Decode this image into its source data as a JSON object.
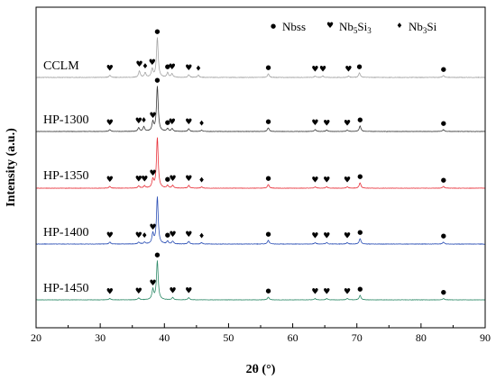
{
  "chart_data": {
    "type": "line",
    "xlabel": "2θ (°)",
    "ylabel": "Intensity (a.u.)",
    "xlim": [
      20,
      90
    ],
    "x_ticks": [
      20,
      30,
      40,
      50,
      60,
      70,
      80,
      90
    ],
    "grid": false,
    "legend_position": "top-right",
    "legend": [
      {
        "symbol": "●",
        "label": "Nbss",
        "label_main": "Nbss",
        "phase": "nbss"
      },
      {
        "symbol": "♥",
        "label": "Nb5Si3",
        "label_main": "Nb",
        "sub1": "5",
        "mid": "Si",
        "sub2": "3",
        "phase": "nb5si3"
      },
      {
        "symbol": "♦",
        "label": "Nb3Si",
        "label_main": "Nb",
        "sub1": "3",
        "mid": "Si",
        "sub2": "",
        "phase": "nb3si"
      }
    ],
    "series": [
      {
        "name": "CCLM",
        "color": "#a6a6a6",
        "baseline": 0.0,
        "noise": 0.6,
        "peaks": [
          [
            31.5,
            2.5
          ],
          [
            36.1,
            7
          ],
          [
            37.0,
            5
          ],
          [
            38.1,
            9
          ],
          [
            38.9,
            44
          ],
          [
            40.5,
            5
          ],
          [
            41.2,
            4
          ],
          [
            43.8,
            3
          ],
          [
            45.3,
            2.5
          ],
          [
            56.2,
            4
          ],
          [
            63.5,
            1.5
          ],
          [
            64.7,
            1.5
          ],
          [
            68.7,
            1.5
          ],
          [
            70.4,
            5
          ],
          [
            83.5,
            2
          ]
        ],
        "markers": [
          {
            "x": 31.5,
            "phase": "nb5si3"
          },
          {
            "x": 36.1,
            "phase": "nb5si3"
          },
          {
            "x": 37.0,
            "phase": "nb3si"
          },
          {
            "x": 38.1,
            "phase": "nb5si3"
          },
          {
            "x": 38.9,
            "phase": "nbss"
          },
          {
            "x": 40.5,
            "phase": "nbss"
          },
          {
            "x": 41.2,
            "phase": "nb5si3"
          },
          {
            "x": 43.8,
            "phase": "nb5si3"
          },
          {
            "x": 45.3,
            "phase": "nb3si"
          },
          {
            "x": 56.2,
            "phase": "nbss"
          },
          {
            "x": 63.5,
            "phase": "nb5si3"
          },
          {
            "x": 64.7,
            "phase": "nb5si3"
          },
          {
            "x": 68.7,
            "phase": "nb5si3"
          },
          {
            "x": 70.4,
            "phase": "nbss"
          },
          {
            "x": 83.5,
            "phase": "nbss"
          }
        ]
      },
      {
        "name": "HP-1300",
        "color": "#3a3a3a",
        "baseline": 0.0,
        "noise": 0.4,
        "peaks": [
          [
            31.5,
            2
          ],
          [
            36.0,
            4
          ],
          [
            36.8,
            5
          ],
          [
            38.2,
            10
          ],
          [
            38.9,
            50
          ],
          [
            40.5,
            3
          ],
          [
            41.2,
            3
          ],
          [
            43.8,
            3
          ],
          [
            45.8,
            1.5
          ],
          [
            56.2,
            4
          ],
          [
            63.5,
            2
          ],
          [
            65.3,
            1.5
          ],
          [
            68.5,
            1.5
          ],
          [
            70.5,
            6
          ],
          [
            83.5,
            2
          ]
        ],
        "markers": [
          {
            "x": 31.5,
            "phase": "nb5si3"
          },
          {
            "x": 36.0,
            "phase": "nb5si3"
          },
          {
            "x": 36.8,
            "phase": "nb3si"
          },
          {
            "x": 38.2,
            "phase": "nb5si3"
          },
          {
            "x": 38.9,
            "phase": "nbss"
          },
          {
            "x": 40.5,
            "phase": "nbss"
          },
          {
            "x": 41.2,
            "phase": "nb5si3"
          },
          {
            "x": 43.8,
            "phase": "nb5si3"
          },
          {
            "x": 45.8,
            "phase": "nb3si"
          },
          {
            "x": 56.2,
            "phase": "nbss"
          },
          {
            "x": 63.5,
            "phase": "nb5si3"
          },
          {
            "x": 65.3,
            "phase": "nb5si3"
          },
          {
            "x": 68.5,
            "phase": "nb5si3"
          },
          {
            "x": 70.5,
            "phase": "nbss"
          },
          {
            "x": 83.5,
            "phase": "nbss"
          }
        ]
      },
      {
        "name": "HP-1350",
        "color": "#e8313a",
        "baseline": 0.0,
        "noise": 0.4,
        "peaks": [
          [
            31.5,
            2
          ],
          [
            36.0,
            2.5
          ],
          [
            36.9,
            2.5
          ],
          [
            38.2,
            9
          ],
          [
            38.9,
            56
          ],
          [
            40.5,
            3
          ],
          [
            41.3,
            3
          ],
          [
            43.8,
            3
          ],
          [
            45.8,
            1.5
          ],
          [
            56.2,
            4
          ],
          [
            63.5,
            1.5
          ],
          [
            65.3,
            1.5
          ],
          [
            68.5,
            1.5
          ],
          [
            70.5,
            6
          ],
          [
            83.5,
            2
          ]
        ],
        "markers": [
          {
            "x": 31.5,
            "phase": "nb5si3"
          },
          {
            "x": 36.0,
            "phase": "nb5si3"
          },
          {
            "x": 36.9,
            "phase": "nb5si3"
          },
          {
            "x": 38.2,
            "phase": "nb5si3"
          },
          {
            "x": 40.5,
            "phase": "nbss"
          },
          {
            "x": 41.3,
            "phase": "nb5si3"
          },
          {
            "x": 43.8,
            "phase": "nb5si3"
          },
          {
            "x": 45.8,
            "phase": "nb3si"
          },
          {
            "x": 56.2,
            "phase": "nbss"
          },
          {
            "x": 63.5,
            "phase": "nb5si3"
          },
          {
            "x": 65.3,
            "phase": "nb5si3"
          },
          {
            "x": 68.5,
            "phase": "nb5si3"
          },
          {
            "x": 70.5,
            "phase": "nbss"
          },
          {
            "x": 83.5,
            "phase": "nbss"
          }
        ]
      },
      {
        "name": "HP-1400",
        "color": "#2b4fb5",
        "baseline": 0.0,
        "noise": 0.5,
        "peaks": [
          [
            31.5,
            2
          ],
          [
            36.0,
            2
          ],
          [
            36.9,
            2
          ],
          [
            38.2,
            11
          ],
          [
            38.9,
            52
          ],
          [
            40.5,
            3
          ],
          [
            41.3,
            3
          ],
          [
            43.8,
            3
          ],
          [
            45.8,
            1.5
          ],
          [
            56.2,
            4
          ],
          [
            63.5,
            1.5
          ],
          [
            65.3,
            1.5
          ],
          [
            68.5,
            1.5
          ],
          [
            70.5,
            6
          ],
          [
            83.5,
            2
          ]
        ],
        "markers": [
          {
            "x": 31.5,
            "phase": "nb5si3"
          },
          {
            "x": 36.0,
            "phase": "nb5si3"
          },
          {
            "x": 36.9,
            "phase": "nb3si"
          },
          {
            "x": 38.2,
            "phase": "nb5si3"
          },
          {
            "x": 40.5,
            "phase": "nbss"
          },
          {
            "x": 41.3,
            "phase": "nb5si3"
          },
          {
            "x": 43.8,
            "phase": "nb5si3"
          },
          {
            "x": 45.8,
            "phase": "nb3si"
          },
          {
            "x": 56.2,
            "phase": "nbss"
          },
          {
            "x": 63.5,
            "phase": "nb5si3"
          },
          {
            "x": 65.3,
            "phase": "nb5si3"
          },
          {
            "x": 68.5,
            "phase": "nb5si3"
          },
          {
            "x": 70.5,
            "phase": "nbss"
          },
          {
            "x": 83.5,
            "phase": "nbss"
          }
        ]
      },
      {
        "name": "HP-1450",
        "color": "#2e8a68",
        "baseline": 0.0,
        "noise": 0.4,
        "peaks": [
          [
            31.5,
            1.5
          ],
          [
            36.0,
            2
          ],
          [
            38.2,
            11
          ],
          [
            38.9,
            43
          ],
          [
            41.3,
            2.5
          ],
          [
            43.8,
            2.5
          ],
          [
            56.2,
            3
          ],
          [
            63.5,
            1.5
          ],
          [
            65.3,
            1.5
          ],
          [
            68.5,
            1.5
          ],
          [
            70.5,
            5
          ],
          [
            83.5,
            1.5
          ]
        ],
        "markers": [
          {
            "x": 31.5,
            "phase": "nb5si3"
          },
          {
            "x": 36.0,
            "phase": "nb5si3"
          },
          {
            "x": 38.2,
            "phase": "nb5si3"
          },
          {
            "x": 38.9,
            "phase": "nbss"
          },
          {
            "x": 41.3,
            "phase": "nb5si3"
          },
          {
            "x": 43.8,
            "phase": "nb5si3"
          },
          {
            "x": 56.2,
            "phase": "nbss"
          },
          {
            "x": 63.5,
            "phase": "nb5si3"
          },
          {
            "x": 65.3,
            "phase": "nb5si3"
          },
          {
            "x": 68.5,
            "phase": "nb5si3"
          },
          {
            "x": 70.5,
            "phase": "nbss"
          },
          {
            "x": 83.5,
            "phase": "nbss"
          }
        ]
      }
    ]
  }
}
